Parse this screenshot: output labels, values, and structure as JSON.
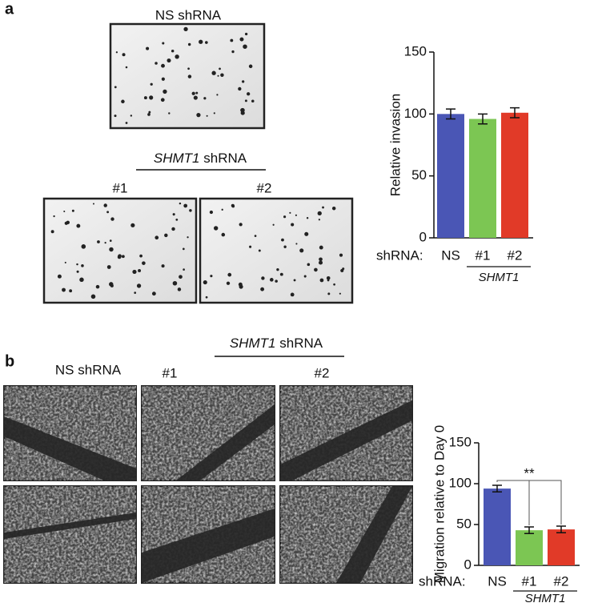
{
  "panel_a": {
    "label": "a",
    "top_image_label": "NS shRNA",
    "group_gene": "SHMT1",
    "group_suffix": "shRNA",
    "image_labels": [
      "#1",
      "#2"
    ]
  },
  "panel_b": {
    "label": "b",
    "ns_label": "NS shRNA",
    "group_gene": "SHMT1",
    "group_suffix": "shRNA",
    "image_labels": [
      "#1",
      "#2"
    ]
  },
  "chart_data": [
    {
      "type": "bar",
      "y_label": "Relative invasion",
      "x_prefix": "shRNA:",
      "categories": [
        "NS",
        "#1",
        "#2"
      ],
      "values": [
        100,
        96,
        101
      ],
      "errors": [
        4,
        4,
        4
      ],
      "colors": [
        "#4a56b5",
        "#7cc653",
        "#e13a28"
      ],
      "ylim": [
        0,
        150
      ],
      "yticks": [
        0,
        50,
        100,
        150
      ],
      "group_label": "SHMT1"
    },
    {
      "type": "bar",
      "y_label": "Migration relative to Day 0",
      "x_prefix": "shRNA:",
      "categories": [
        "NS",
        "#1",
        "#2"
      ],
      "values": [
        94,
        43,
        44
      ],
      "errors": [
        4,
        4,
        4
      ],
      "colors": [
        "#4a56b5",
        "#7cc653",
        "#e13a28"
      ],
      "ylim": [
        0,
        150
      ],
      "yticks": [
        0,
        50,
        100,
        150
      ],
      "group_label": "SHMT1",
      "annotation": "**"
    }
  ]
}
